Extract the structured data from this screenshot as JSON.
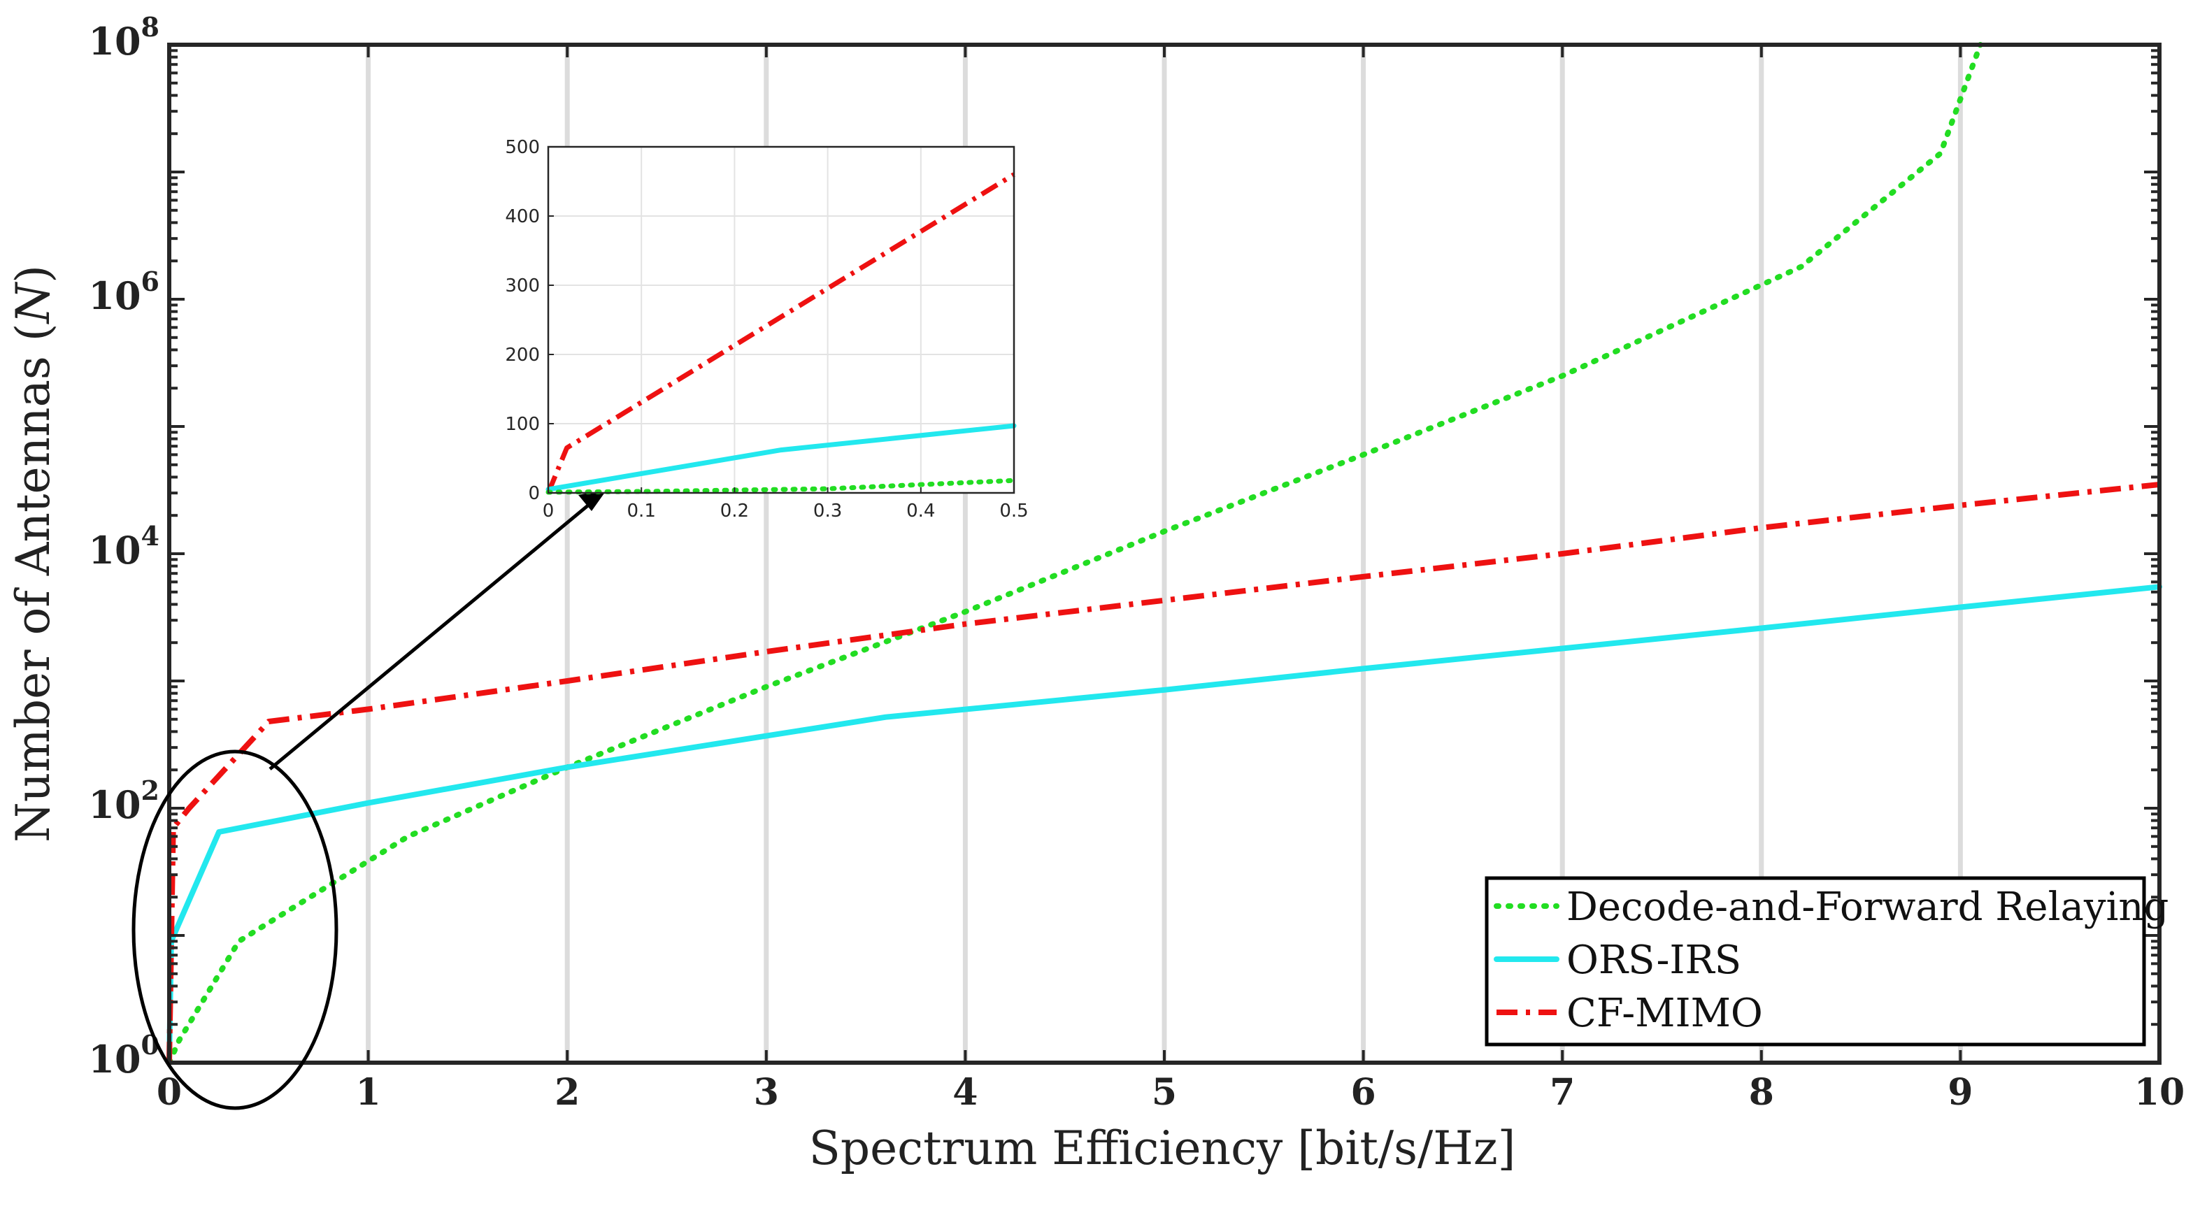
{
  "chart_data": [
    {
      "type": "line",
      "xlabel": "Spectrum Efficiency [bit/s/Hz]",
      "ylabel": "Number of Antennas (N)",
      "yscale": "log",
      "xlim": [
        0,
        10
      ],
      "ylim": [
        1,
        100000000
      ],
      "xticks": [
        0,
        1,
        2,
        3,
        4,
        5,
        6,
        7,
        8,
        9,
        10
      ],
      "xtick_labels": [
        "0",
        "1",
        "2",
        "3",
        "4",
        "5",
        "6",
        "7",
        "8",
        "9",
        "10"
      ],
      "yticks": [
        1,
        100,
        10000,
        1000000,
        100000000
      ],
      "ytick_labels": [
        {
          "base": "10",
          "exp": "0"
        },
        {
          "base": "10",
          "exp": "2"
        },
        {
          "base": "10",
          "exp": "4"
        },
        {
          "base": "10",
          "exp": "6"
        },
        {
          "base": "10",
          "exp": "8"
        }
      ],
      "grid": "x-major",
      "legend_position": "bottom-right",
      "series": [
        {
          "name": "Decode-and-Forward Relaying",
          "color": "#22dd22",
          "style": "dotted",
          "x": [
            0,
            0.05,
            0.35,
            1.2,
            2.0,
            3.0,
            4.0,
            5.0,
            6.0,
            7.0,
            8.2,
            8.9,
            9.1
          ],
          "y": [
            1,
            1.5,
            9,
            60,
            210,
            900,
            3500,
            15000,
            60000,
            250000,
            1800000,
            14000000,
            100000000
          ]
        },
        {
          "name": "ORS-IRS",
          "color": "#22e8ee",
          "style": "solid",
          "x": [
            0,
            0.01,
            0.25,
            1.0,
            2.0,
            3.0,
            3.6,
            5.0,
            6.0,
            7.0,
            8.0,
            9.0,
            10.0
          ],
          "y": [
            1,
            9,
            65,
            110,
            210,
            370,
            520,
            850,
            1250,
            1800,
            2600,
            3800,
            5500
          ]
        },
        {
          "name": "CF-MIMO",
          "color": "#ee1111",
          "style": "dashdot",
          "x": [
            0,
            0.02,
            0.1,
            0.5,
            1.0,
            2.0,
            3.0,
            4.0,
            5.0,
            6.0,
            7.0,
            8.0,
            9.0,
            10.0
          ],
          "y": [
            1,
            70,
            100,
            480,
            600,
            1000,
            1700,
            2800,
            4300,
            6600,
            10000,
            16000,
            24000,
            35000
          ]
        }
      ],
      "annotations": [
        {
          "type": "ellipse",
          "description": "zoom region around low spectrum efficiency"
        },
        {
          "type": "arrow",
          "description": "points from ellipse to inset"
        }
      ]
    },
    {
      "type": "line",
      "role": "inset",
      "xlim": [
        0,
        0.5
      ],
      "ylim": [
        0,
        500
      ],
      "xticks": [
        0,
        0.1,
        0.2,
        0.3,
        0.4,
        0.5
      ],
      "xtick_labels": [
        "0",
        "0.1",
        "0.2",
        "0.3",
        "0.4",
        "0.5"
      ],
      "yticks": [
        0,
        100,
        200,
        300,
        400,
        500
      ],
      "ytick_labels": [
        "0",
        "100",
        "200",
        "300",
        "400",
        "500"
      ],
      "grid": "both",
      "series": [
        {
          "name": "CF-MIMO",
          "color": "#ee1111",
          "style": "dashdot",
          "x": [
            0,
            0.02,
            0.5
          ],
          "y": [
            0,
            65,
            460
          ]
        },
        {
          "name": "ORS-IRS",
          "color": "#22e8ee",
          "style": "solid",
          "x": [
            0,
            0.25,
            0.5
          ],
          "y": [
            5,
            62,
            97
          ]
        },
        {
          "name": "Decode-and-Forward Relaying",
          "color": "#22dd22",
          "style": "dotted",
          "x": [
            0,
            0.1,
            0.3,
            0.5
          ],
          "y": [
            1,
            2,
            6,
            18
          ]
        }
      ]
    }
  ]
}
